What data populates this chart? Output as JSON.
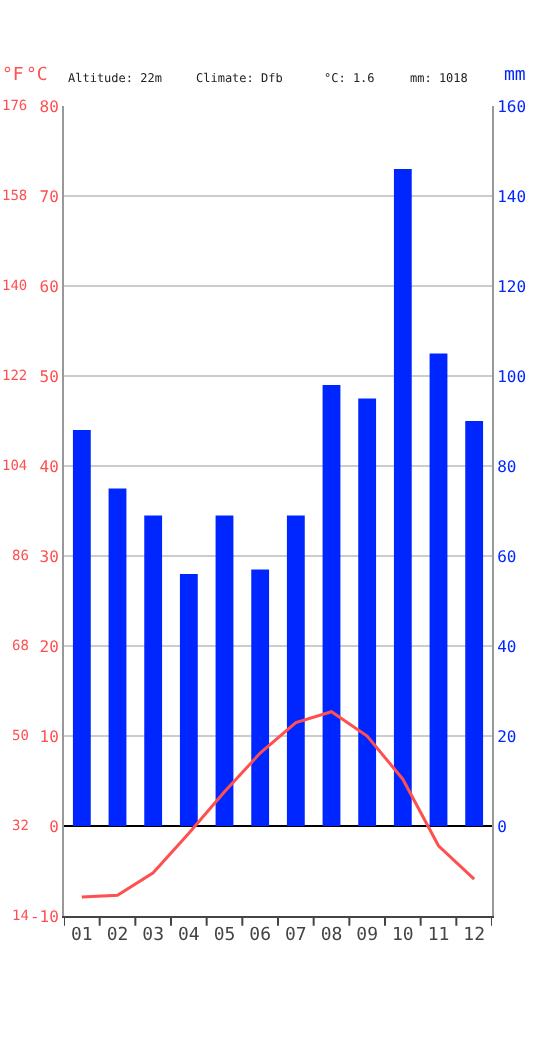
{
  "chart_data": {
    "type": "bar",
    "categories": [
      "01",
      "02",
      "03",
      "04",
      "05",
      "06",
      "07",
      "08",
      "09",
      "10",
      "11",
      "12"
    ],
    "series": [
      {
        "type": "bar",
        "color": "#0026ff",
        "axis": "y2",
        "values": [
          88,
          75,
          69,
          56,
          69,
          57,
          69,
          98,
          95,
          146,
          105,
          90
        ]
      },
      {
        "type": "line",
        "color": "#ff5050",
        "values": [
          -7.9,
          -7.7,
          -5.2,
          -0.8,
          3.8,
          8.1,
          11.5,
          12.7,
          10.0,
          5.2,
          -2.2,
          -5.9
        ]
      }
    ],
    "ylabel": "°C",
    "y2label": "mm",
    "y3label": "°F",
    "ylim": [
      -10,
      80
    ],
    "yticks": [
      -10,
      0,
      10,
      20,
      30,
      40,
      50,
      60,
      70,
      80
    ],
    "y2lim": [
      -20,
      160
    ],
    "y2ticks": [
      0,
      20,
      40,
      60,
      80,
      100,
      120,
      140,
      160
    ],
    "y3lim": [
      14,
      176
    ],
    "y3ticks": [
      14,
      32,
      50,
      68,
      86,
      104,
      122,
      140,
      158,
      176
    ],
    "annotations": [
      "Altitude: 22m",
      "Climate: Dfb",
      "°C: 1.6",
      "mm: 1018"
    ],
    "grid": "y",
    "marker": "none",
    "line_style": "solid"
  }
}
